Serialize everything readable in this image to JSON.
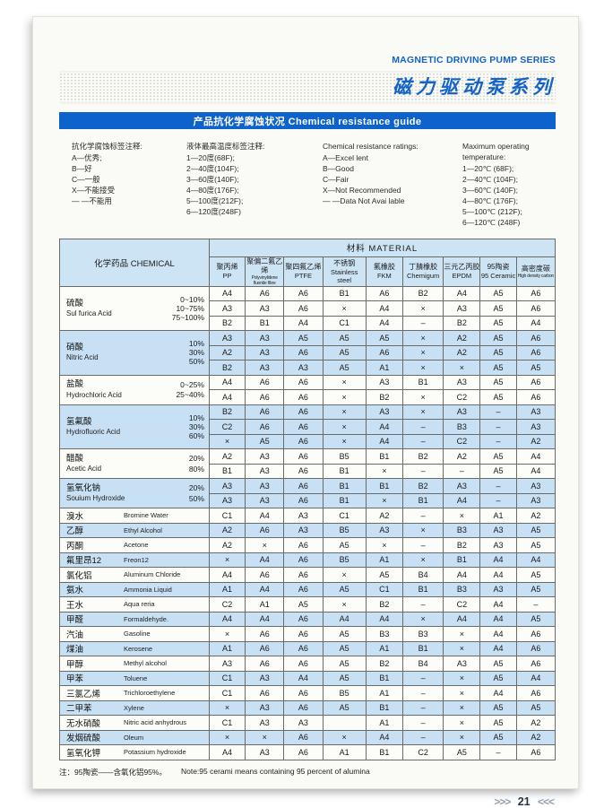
{
  "header": {
    "series_title_en": "MAGNETIC DRIVING PUMP SERIES",
    "series_title_zh": "磁力驱动泵系列",
    "banner_title": "产品抗化学腐蚀状况 Chemical resistance guide"
  },
  "colors": {
    "brand_blue": "#1464c8",
    "banner_blue": "#0e62cc",
    "row_blue": "#c7e0f3",
    "header_blue": "#cde4f4"
  },
  "legend": {
    "columns": [
      {
        "title": "抗化学腐蚀标签注释:",
        "lines": [
          "A—优秀;",
          "B—好",
          "C—一般",
          "X—不能接受",
          "— —不能用"
        ]
      },
      {
        "title": "液体最高温度标签注释:",
        "lines": [
          "1—20度(68F);",
          "2—40度(104F);",
          "3—60度(140F);",
          "4—80度(176F);",
          "5—100度(212F);",
          "6—120度(248F)"
        ]
      },
      {
        "title": "Chemical resistance ratings:",
        "lines": [
          "A—Excel lent",
          "B—Good",
          "C—Fair",
          "X—Not Recommended",
          "— —Data Not Avai lable"
        ]
      },
      {
        "title": "Maximum operating temperature:",
        "lines": [
          "1—20℃ (68F);",
          "2—40℃ (104F);",
          "3—60℃ (140F);",
          "4—80℃ (176F);",
          "5—100℃ (212F);",
          "6—120℃ (248F)"
        ]
      }
    ]
  },
  "table": {
    "chemical_header": "化学药品 CHEMICAL",
    "material_header": "材料  MATERIAL",
    "materials": [
      {
        "zh": "聚丙烯",
        "en": "PP"
      },
      {
        "zh": "聚偏二氟乙烯",
        "en": "Polyvinylidene fluoride fibre",
        "en_tiny": true
      },
      {
        "zh": "聚四氟乙烯",
        "en": "PTFE"
      },
      {
        "zh": "不锈钢",
        "en": "Stainless steel"
      },
      {
        "zh": "氟橡胶",
        "en": "FKM"
      },
      {
        "zh": "丁腈橡胶",
        "en": "Chemigum"
      },
      {
        "zh": "三元乙丙胶",
        "en": "EPDM"
      },
      {
        "zh": "95陶瓷",
        "en": "95 Ceramic"
      },
      {
        "zh": "高密度碳",
        "en": "High density carbon",
        "en_tiny": true
      }
    ],
    "groups": [
      {
        "zh": "硫酸",
        "en": "Sul furica Acid",
        "rows": [
          {
            "conc": "0~10%",
            "values": [
              "A4",
              "A6",
              "A6",
              "B1",
              "A6",
              "B2",
              "A4",
              "A5",
              "A6"
            ]
          },
          {
            "conc": "10~75%",
            "values": [
              "A3",
              "A3",
              "A6",
              "×",
              "A4",
              "×",
              "A3",
              "A5",
              "A6"
            ]
          },
          {
            "conc": "75~100%",
            "values": [
              "B2",
              "B1",
              "A4",
              "C1",
              "A4",
              "–",
              "B2",
              "A5",
              "A4"
            ]
          }
        ]
      },
      {
        "zh": "硝酸",
        "en": "Nitric Acid",
        "rows": [
          {
            "conc": "10%",
            "values": [
              "A3",
              "A3",
              "A5",
              "A5",
              "A5",
              "×",
              "A2",
              "A5",
              "A6"
            ]
          },
          {
            "conc": "30%",
            "values": [
              "A2",
              "A3",
              "A6",
              "A5",
              "A6",
              "×",
              "A2",
              "A5",
              "A6"
            ]
          },
          {
            "conc": "50%",
            "values": [
              "B2",
              "A3",
              "A3",
              "A5",
              "A1",
              "×",
              "×",
              "A5",
              "A5"
            ]
          }
        ]
      },
      {
        "zh": "盐酸",
        "en": "Hydrochloric Acid",
        "rows": [
          {
            "conc": "0~25%",
            "values": [
              "A4",
              "A6",
              "A6",
              "×",
              "A3",
              "B1",
              "A3",
              "A5",
              "A6"
            ]
          },
          {
            "conc": "25~40%",
            "values": [
              "A4",
              "A6",
              "A6",
              "×",
              "B2",
              "×",
              "C2",
              "A5",
              "A6"
            ]
          }
        ]
      },
      {
        "zh": "氢氟酸",
        "en": "Hydrofluoric Acid",
        "rows": [
          {
            "conc": "10%",
            "values": [
              "B2",
              "A6",
              "A6",
              "×",
              "A3",
              "×",
              "A3",
              "–",
              "A3"
            ]
          },
          {
            "conc": "30%",
            "values": [
              "C2",
              "A6",
              "A6",
              "×",
              "A4",
              "–",
              "B3",
              "–",
              "A3"
            ]
          },
          {
            "conc": "60%",
            "values": [
              "×",
              "A5",
              "A6",
              "×",
              "A4",
              "–",
              "C2",
              "–",
              "A2"
            ]
          }
        ]
      },
      {
        "zh": "醋酸",
        "en": "Acetic Acid",
        "rows": [
          {
            "conc": "20%",
            "values": [
              "A2",
              "A3",
              "A6",
              "B5",
              "B1",
              "B2",
              "A2",
              "A5",
              "A4"
            ]
          },
          {
            "conc": "80%",
            "values": [
              "B1",
              "A3",
              "A6",
              "B1",
              "×",
              "–",
              "–",
              "A5",
              "A4"
            ]
          }
        ]
      },
      {
        "zh": "氢氧化钠",
        "en": "Souium Hydroxide",
        "rows": [
          {
            "conc": "20%",
            "values": [
              "A3",
              "A3",
              "A6",
              "B1",
              "B1",
              "B2",
              "A3",
              "–",
              "A3"
            ]
          },
          {
            "conc": "50%",
            "values": [
              "A3",
              "A3",
              "A6",
              "B1",
              "×",
              "B1",
              "A4",
              "–",
              "A3"
            ]
          }
        ]
      },
      {
        "zh": "溴水",
        "en": "Bromine Water",
        "rows": [
          {
            "values": [
              "C1",
              "A4",
              "A3",
              "C1",
              "A2",
              "–",
              "×",
              "A1",
              "A2"
            ]
          }
        ]
      },
      {
        "zh": "乙醇",
        "en": "Ethyl Alcohol",
        "rows": [
          {
            "values": [
              "A2",
              "A6",
              "A3",
              "B5",
              "A3",
              "×",
              "B3",
              "A3",
              "A5"
            ]
          }
        ]
      },
      {
        "zh": "丙酮",
        "en": "Acetone",
        "rows": [
          {
            "values": [
              "A2",
              "×",
              "A6",
              "A5",
              "×",
              "–",
              "B2",
              "A3",
              "A5"
            ]
          }
        ]
      },
      {
        "zh": "氟里昂12",
        "en": "Freon12",
        "rows": [
          {
            "values": [
              "×",
              "A4",
              "A6",
              "B5",
              "A1",
              "×",
              "B1",
              "A4",
              "A4"
            ]
          }
        ]
      },
      {
        "zh": "氯化铝",
        "en": "Aluminum Chloride",
        "rows": [
          {
            "values": [
              "A4",
              "A6",
              "A6",
              "×",
              "A5",
              "B4",
              "A4",
              "A4",
              "A5"
            ]
          }
        ]
      },
      {
        "zh": "氨水",
        "en": "Ammonia Liquid",
        "rows": [
          {
            "values": [
              "A1",
              "A4",
              "A6",
              "A5",
              "C1",
              "B1",
              "B3",
              "A3",
              "A5"
            ]
          }
        ]
      },
      {
        "zh": "王水",
        "en": "Aqua reria",
        "rows": [
          {
            "values": [
              "C2",
              "A1",
              "A5",
              "×",
              "B2",
              "–",
              "C2",
              "A4",
              "–"
            ]
          }
        ]
      },
      {
        "zh": "甲醛",
        "en": "Formaldehyde.",
        "rows": [
          {
            "values": [
              "A4",
              "A4",
              "A6",
              "A4",
              "A4",
              "×",
              "A4",
              "A4",
              "A5"
            ]
          }
        ]
      },
      {
        "zh": "汽油",
        "en": "Gasoline",
        "rows": [
          {
            "values": [
              "×",
              "A6",
              "A6",
              "A5",
              "B3",
              "B3",
              "×",
              "A4",
              "A6"
            ]
          }
        ]
      },
      {
        "zh": "煤油",
        "en": "Kerosene",
        "rows": [
          {
            "values": [
              "A1",
              "A6",
              "A6",
              "A5",
              "A1",
              "B1",
              "×",
              "A4",
              "A6"
            ]
          }
        ]
      },
      {
        "zh": "甲醇",
        "en": "Methyl alcohol",
        "rows": [
          {
            "values": [
              "A3",
              "A6",
              "A6",
              "A5",
              "B2",
              "B4",
              "A3",
              "A5",
              "A6"
            ]
          }
        ]
      },
      {
        "zh": "甲苯",
        "en": "Toluene",
        "rows": [
          {
            "values": [
              "C1",
              "A3",
              "A4",
              "A5",
              "B1",
              "–",
              "×",
              "A5",
              "A4"
            ]
          }
        ]
      },
      {
        "zh": "三氯乙烯",
        "en": "Trichloroethylene",
        "rows": [
          {
            "values": [
              "C1",
              "A6",
              "A6",
              "B5",
              "A1",
              "–",
              "×",
              "A4",
              "A6"
            ]
          }
        ]
      },
      {
        "zh": "二甲苯",
        "en": "Xylene",
        "rows": [
          {
            "values": [
              "×",
              "A3",
              "A6",
              "A5",
              "B1",
              "–",
              "×",
              "A5",
              "A5"
            ]
          }
        ]
      },
      {
        "zh": "无水硝酸",
        "en": "Nitric acid anhydrous",
        "rows": [
          {
            "values": [
              "C1",
              "A3",
              "A3",
              "",
              "A1",
              "–",
              "×",
              "A5",
              "A2"
            ]
          }
        ]
      },
      {
        "zh": "发烟硫酸",
        "en": "Oleum",
        "rows": [
          {
            "values": [
              "×",
              "×",
              "A6",
              "×",
              "A4",
              "–",
              "×",
              "A5",
              "A2"
            ]
          }
        ]
      },
      {
        "zh": "氢氧化钾",
        "en": "Potassium hydroxide",
        "rows": [
          {
            "values": [
              "A4",
              "A3",
              "A6",
              "A1",
              "B1",
              "C2",
              "A5",
              "–",
              "A6"
            ]
          }
        ]
      }
    ]
  },
  "footer": {
    "note_zh": "注：95陶瓷——含氧化铝95%。",
    "note_en": "Note:95 cerami means containing 95 percent of alumina",
    "nav_prefix": ">>>",
    "page_number": "21",
    "nav_suffix": "<<<"
  }
}
